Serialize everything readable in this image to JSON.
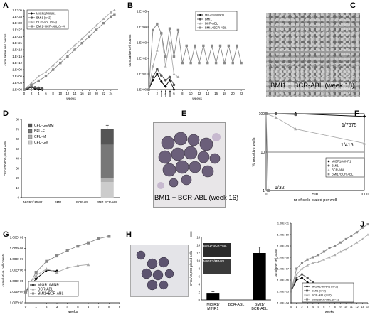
{
  "colors": {
    "migr": "#000000",
    "bmi1": "#555555",
    "bcr": "#aaaaaa",
    "bmi1bcr": "#888888",
    "cfu_gemm": "#555555",
    "bfu_e": "#777777",
    "cfu_m": "#b0b0b0",
    "cfu_gm": "#cccccc"
  },
  "panels": {
    "A": {
      "label": "A"
    },
    "B": {
      "label": "B"
    },
    "C": {
      "label": "C",
      "caption": "BMI1 + BCR-ABL (week 18)"
    },
    "D": {
      "label": "D"
    },
    "E": {
      "label": "E",
      "caption": "BMI1 + BCR-ABL (week 16)"
    },
    "F": {
      "label": "F"
    },
    "G": {
      "label": "G"
    },
    "H": {
      "label": "H"
    },
    "I": {
      "label": "I",
      "inset1": "BMI1+BCR-ABL",
      "inset2": "MIGR1/MINR1"
    },
    "J": {
      "label": "J"
    }
  },
  "chart_data": [
    {
      "id": "A",
      "type": "line",
      "ylabel": "cumulative cell counts",
      "xlabel": "weeks",
      "x_ticks": [
        "0",
        "2",
        "4",
        "6",
        "8",
        "10",
        "12",
        "14",
        "16",
        "18",
        "20",
        "22",
        "24"
      ],
      "y_ticks": [
        "1.E+00",
        "1.E+03",
        "1.E+06",
        "1.E+09",
        "1.E+12",
        "1.E+15",
        "1.E+18",
        "1.E+21",
        "1.E+24",
        "1.E+27",
        "1.E+30",
        "1.E+33",
        "1.E+36"
      ],
      "xlim": [
        0,
        26
      ],
      "ylim": [
        0,
        36
      ],
      "legend": [
        "MIGR1/MINR1",
        "BMI1 (n=2)",
        "BCR-ABL (n=4)",
        "BMI1+BCR-ABL (n=4)"
      ],
      "series": [
        {
          "name": "MIGR1/MINR1",
          "x": [
            0,
            1,
            2,
            3,
            4,
            5
          ],
          "y": [
            0,
            0.5,
            1,
            0.5,
            0.3,
            0
          ]
        },
        {
          "name": "BMI1 (n=2)",
          "x": [
            0,
            1,
            2,
            3,
            4,
            5
          ],
          "y": [
            0,
            0.8,
            1.2,
            1,
            0.8,
            0.5
          ]
        },
        {
          "name": "BCR-ABL (n=4)",
          "x": [
            0,
            2,
            4,
            6,
            8,
            10,
            12,
            14,
            16,
            18,
            20,
            22,
            24,
            25
          ],
          "y": [
            0,
            3,
            6,
            8,
            11,
            14,
            17,
            20,
            23,
            26,
            29,
            32,
            35,
            36
          ]
        },
        {
          "name": "BMI1+BCR-ABL (n=4)",
          "x": [
            0,
            2,
            4,
            6,
            8,
            10,
            12,
            14,
            16,
            18,
            20,
            22,
            24,
            25
          ],
          "y": [
            0,
            2,
            4,
            6,
            9,
            12,
            15,
            18,
            21,
            24,
            27,
            30,
            33,
            34
          ]
        }
      ]
    },
    {
      "id": "B",
      "type": "line",
      "ylabel": "cumulative cell counts",
      "xlabel": "weeks",
      "x_ticks": [
        "0",
        "2",
        "4",
        "6",
        "8",
        "10",
        "12",
        "14",
        "16",
        "18",
        "20",
        "22"
      ],
      "y_ticks": [
        "1.E+00",
        "1.E+01",
        "1.E+02",
        "1.E+03",
        "1.E+04",
        "1.E+05"
      ],
      "xlim": [
        0,
        23
      ],
      "ylim": [
        0,
        5
      ],
      "legend": [
        "MIGR1/MINR1",
        "BMI1",
        "BCR-ABL",
        "BMI1+BCR-ABL"
      ],
      "series": [
        {
          "name": "MIGR1/MINR1",
          "x": [
            0,
            1,
            2,
            3,
            4,
            5,
            6
          ],
          "y": [
            0,
            0.6,
            1,
            0.5,
            0.2,
            0.6,
            0
          ]
        },
        {
          "name": "BMI1",
          "x": [
            0,
            1,
            2,
            3,
            4,
            5,
            6
          ],
          "y": [
            0,
            0.8,
            1.3,
            0.9,
            0.6,
            0.8,
            0.3
          ]
        },
        {
          "name": "BCR-ABL",
          "x": [
            0,
            1,
            2,
            3,
            4,
            5,
            6,
            7
          ],
          "y": [
            0,
            1.5,
            2.5,
            3.6,
            1.5,
            3,
            1,
            0.8
          ]
        },
        {
          "name": "BMI1+BCR-ABL",
          "x": [
            0,
            1,
            2,
            3,
            4,
            5,
            6,
            7,
            8,
            9,
            10,
            11,
            12,
            13,
            14,
            15,
            16,
            17,
            18,
            19,
            20,
            21,
            22
          ],
          "y": [
            0,
            3.8,
            4.2,
            3.6,
            2.1,
            3.9,
            2.1,
            3.8,
            1.7,
            2.8,
            1.7,
            2.8,
            1.7,
            2.8,
            1.7,
            2.8,
            1.7,
            2.8,
            1.7,
            2.8,
            1.7,
            2.8,
            1.7
          ]
        }
      ]
    },
    {
      "id": "D",
      "type": "bar",
      "ylabel": "CFCs/10,000 plated cells",
      "categories": [
        "MIGR1/ MINR1",
        "BMI1",
        "BCR-ABL",
        "BMI1 BCR-ABL"
      ],
      "y_ticks": [
        "0",
        "10",
        "20",
        "30",
        "40",
        "50",
        "60",
        "70",
        "80"
      ],
      "ylim": [
        0,
        80
      ],
      "legend": [
        "CFU-GEMM",
        "BFU-E",
        "CFU-M",
        "CFU-GM"
      ],
      "series": [
        {
          "name": "CFU-GM",
          "values": [
            0,
            0,
            0,
            16
          ]
        },
        {
          "name": "CFU-M",
          "values": [
            0,
            0,
            0,
            4
          ]
        },
        {
          "name": "BFU-E",
          "values": [
            0,
            0,
            0,
            34
          ]
        },
        {
          "name": "CFU-GEMM",
          "values": [
            0,
            0,
            0,
            16
          ]
        }
      ],
      "error": [
        0,
        0,
        0,
        4
      ]
    },
    {
      "id": "F",
      "type": "scatter",
      "ylabel": "% negative wells",
      "xlabel": "nr of cells plated per well",
      "x_ticks": [
        "0",
        "500",
        "1000"
      ],
      "y_ticks": [
        "1",
        "10",
        "100"
      ],
      "xlim": [
        0,
        1000
      ],
      "ylim": [
        1,
        100
      ],
      "ylog": true,
      "annotations": [
        "1/7675",
        "1/415",
        "1/32"
      ],
      "legend": [
        "MIGR1/MINR1",
        "BMI1",
        "BCR-ABL",
        "BMI1+BCR-ABL"
      ],
      "series": [
        {
          "name": "MIGR1/MINR1",
          "x": [
            0,
            100,
            300,
            1000
          ],
          "y": [
            100,
            100,
            100,
            85
          ]
        },
        {
          "name": "BMI1",
          "x": [
            0,
            100,
            300
          ],
          "y": [
            100,
            100,
            95
          ]
        },
        {
          "name": "BCR-ABL",
          "x": [
            0,
            100,
            300,
            1000
          ],
          "y": [
            100,
            80,
            40,
            17
          ]
        },
        {
          "name": "BMI1+BCR-ABL",
          "x": [
            0,
            20,
            30
          ],
          "y": [
            100,
            1,
            1
          ]
        }
      ]
    },
    {
      "id": "G",
      "type": "line",
      "ylabel": "cumulative cell counts",
      "xlabel": "weeks",
      "x_ticks": [
        "0",
        "1",
        "2",
        "3",
        "4",
        "5",
        "6",
        "7",
        "8",
        "9"
      ],
      "y_ticks": [
        "1.00E+03",
        "1.00E+04",
        "1.00E+05",
        "1.00E+06",
        "1.00E+07",
        "1.00E+08",
        "1.00E+09"
      ],
      "xlim": [
        0,
        9
      ],
      "ylim": [
        3,
        9
      ],
      "legend": [
        "MIGR1/MINR1",
        "BCR-ABL",
        "BMI1+BCR-ABL"
      ],
      "series": [
        {
          "name": "MIGR1/MINR1",
          "x": [
            0,
            1,
            2,
            3
          ],
          "y": [
            4,
            5.2,
            6,
            5.9
          ]
        },
        {
          "name": "BCR-ABL",
          "x": [
            0,
            1,
            2,
            3,
            4,
            5,
            6
          ],
          "y": [
            4,
            5.5,
            6.1,
            5.8,
            6.2,
            6.4,
            6.5
          ]
        },
        {
          "name": "BMI1+BCR-ABL",
          "x": [
            0,
            1,
            2,
            3,
            4,
            5,
            6,
            7,
            8
          ],
          "y": [
            4,
            5.8,
            6.8,
            7.3,
            7.8,
            8.2,
            8.5,
            8.9,
            9.1
          ]
        }
      ]
    },
    {
      "id": "I",
      "type": "bar",
      "ylabel": "CFCs/10,000 plated cells",
      "categories": [
        "MIGR1/ MINR1",
        "BCR-ABL",
        "BMI1/ BCR-ABL"
      ],
      "y_ticks": [
        "0",
        "2",
        "4",
        "6",
        "8",
        "10",
        "12",
        "14",
        "16"
      ],
      "ylim": [
        0,
        16
      ],
      "values": [
        1.8,
        0,
        12
      ],
      "error": [
        0.3,
        0,
        1.5
      ]
    },
    {
      "id": "J",
      "type": "line",
      "ylabel": "cumulative cell counts",
      "xlabel": "weeks",
      "x_ticks": [
        "0",
        "1",
        "2",
        "3",
        "4",
        "5",
        "6",
        "7",
        "8",
        "9",
        "10",
        "11",
        "12",
        "13",
        "14"
      ],
      "y_ticks": [
        "1.00E+04",
        "1.00E+05",
        "1.00E+06",
        "1.00E+07",
        "1.00E+08",
        "1.00E+09",
        "1.00E+10",
        "1.00E+11"
      ],
      "xlim": [
        0,
        14
      ],
      "ylim": [
        4,
        11
      ],
      "legend": [
        "MIGR1/MINR1 (n=2)",
        "BMI1 (n=2)",
        "BCR-ABL (n=2)",
        "BMI1/BCR-ABL (n=2)"
      ],
      "series": [
        {
          "name": "MIGR1/MINR1 (n=2)",
          "x": [
            0,
            1,
            2,
            3,
            4,
            5,
            6
          ],
          "y": [
            5,
            6,
            6.2,
            5.8,
            5.5,
            5,
            4.5
          ]
        },
        {
          "name": "BMI1 (n=2)",
          "x": [
            0,
            1,
            2,
            3,
            4,
            5,
            6
          ],
          "y": [
            5,
            6.2,
            6.5,
            6.2,
            5.8,
            5.3,
            4.8
          ]
        },
        {
          "name": "BCR-ABL (n=2)",
          "x": [
            0,
            1,
            2,
            3,
            4,
            5,
            6,
            7,
            8,
            9,
            10,
            11,
            12,
            13,
            14
          ],
          "y": [
            5,
            6.5,
            7,
            7.3,
            7.5,
            7.6,
            7.8,
            8,
            8.2,
            8.5,
            8.7,
            9,
            9.3,
            9.6,
            10
          ]
        },
        {
          "name": "BMI1/BCR-ABL (n=2)",
          "x": [
            0,
            1,
            2,
            3,
            4,
            5,
            6,
            7,
            8,
            9,
            10,
            11,
            12,
            13,
            14
          ],
          "y": [
            5,
            7,
            7.5,
            7.8,
            8,
            8.2,
            8.5,
            8.8,
            9,
            9.3,
            9.6,
            9.9,
            10.2,
            10.6,
            10.9
          ]
        }
      ]
    }
  ]
}
